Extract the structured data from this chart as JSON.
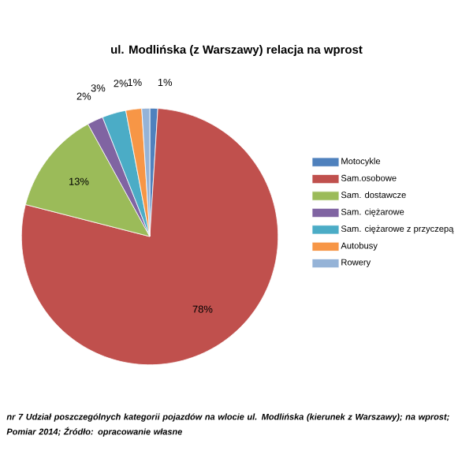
{
  "chart_data": {
    "type": "pie",
    "title": "ul. Modlińska (z Warszawy) relacja na wprost",
    "categories": [
      "Motocykle",
      "Sam.osobowe",
      "Sam. dostawcze",
      "Sam. ciężarowe",
      "Sam. ciężarowe z przyczepą",
      "Autobusy",
      "Rowery"
    ],
    "values": [
      1,
      78,
      13,
      2,
      3,
      2,
      1
    ],
    "colors": [
      "#4f81bd",
      "#c0504d",
      "#9bbb59",
      "#8064a2",
      "#4bacc6",
      "#f79646",
      "#95b3d7"
    ],
    "value_labels": [
      "1%",
      "78%",
      "13%",
      "2%",
      "3%",
      "2%",
      "1%"
    ],
    "legend": "right",
    "annotations": [
      "nr 7 Udział poszczególnych kategorii pojazdów na wlocie ul. Modlińska (kierunek z Warszawy); na wprost; Pomiar 2014; Źródło: opracowanie własne"
    ]
  }
}
